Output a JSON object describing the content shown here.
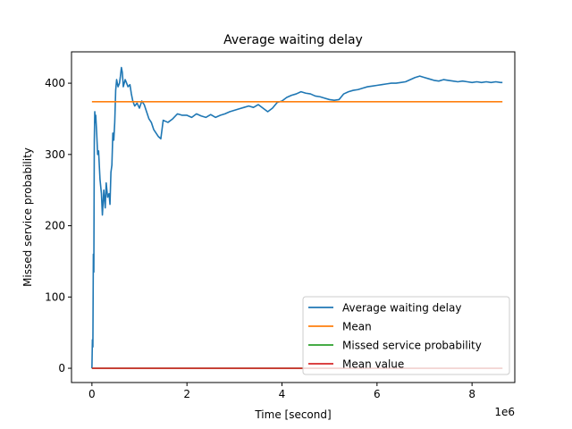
{
  "chart_data": {
    "type": "line",
    "title": "Average waiting delay",
    "xlabel": "Time [second]",
    "ylabel": "Missed service probability",
    "x_offset_label": "1e6",
    "xlim": [
      -0.43,
      8.9
    ],
    "ylim": [
      -20,
      444
    ],
    "x_ticks": [
      0,
      2,
      4,
      6,
      8
    ],
    "y_ticks": [
      0,
      100,
      200,
      300,
      400
    ],
    "x_tick_labels": [
      "0",
      "2",
      "4",
      "6",
      "8"
    ],
    "y_tick_labels": [
      "0",
      "100",
      "200",
      "300",
      "400"
    ],
    "grid": false,
    "legend_position": "lower right",
    "series": [
      {
        "name": "Average waiting delay",
        "color": "#1f77b4",
        "points": [
          [
            0,
            0
          ],
          [
            0.01,
            40
          ],
          [
            0.02,
            30
          ],
          [
            0.03,
            160
          ],
          [
            0.04,
            135
          ],
          [
            0.05,
            320
          ],
          [
            0.06,
            360
          ],
          [
            0.07,
            345
          ],
          [
            0.08,
            355
          ],
          [
            0.1,
            330
          ],
          [
            0.12,
            300
          ],
          [
            0.14,
            305
          ],
          [
            0.17,
            265
          ],
          [
            0.2,
            245
          ],
          [
            0.22,
            215
          ],
          [
            0.25,
            250
          ],
          [
            0.28,
            225
          ],
          [
            0.3,
            260
          ],
          [
            0.33,
            240
          ],
          [
            0.36,
            245
          ],
          [
            0.38,
            230
          ],
          [
            0.4,
            275
          ],
          [
            0.42,
            285
          ],
          [
            0.44,
            330
          ],
          [
            0.46,
            320
          ],
          [
            0.48,
            345
          ],
          [
            0.5,
            390
          ],
          [
            0.52,
            405
          ],
          [
            0.55,
            395
          ],
          [
            0.58,
            400
          ],
          [
            0.6,
            410
          ],
          [
            0.62,
            422
          ],
          [
            0.64,
            415
          ],
          [
            0.66,
            395
          ],
          [
            0.7,
            405
          ],
          [
            0.73,
            400
          ],
          [
            0.76,
            395
          ],
          [
            0.8,
            398
          ],
          [
            0.83,
            385
          ],
          [
            0.86,
            375
          ],
          [
            0.9,
            368
          ],
          [
            0.95,
            372
          ],
          [
            1.0,
            365
          ],
          [
            1.05,
            375
          ],
          [
            1.1,
            370
          ],
          [
            1.15,
            360
          ],
          [
            1.2,
            350
          ],
          [
            1.25,
            345
          ],
          [
            1.3,
            335
          ],
          [
            1.35,
            330
          ],
          [
            1.4,
            325
          ],
          [
            1.45,
            322
          ],
          [
            1.5,
            348
          ],
          [
            1.6,
            345
          ],
          [
            1.7,
            350
          ],
          [
            1.8,
            357
          ],
          [
            1.9,
            355
          ],
          [
            2.0,
            355
          ],
          [
            2.1,
            352
          ],
          [
            2.2,
            357
          ],
          [
            2.3,
            354
          ],
          [
            2.4,
            352
          ],
          [
            2.5,
            356
          ],
          [
            2.6,
            352
          ],
          [
            2.7,
            355
          ],
          [
            2.8,
            357
          ],
          [
            2.9,
            360
          ],
          [
            3.0,
            362
          ],
          [
            3.1,
            364
          ],
          [
            3.2,
            366
          ],
          [
            3.3,
            368
          ],
          [
            3.4,
            366
          ],
          [
            3.5,
            370
          ],
          [
            3.6,
            365
          ],
          [
            3.7,
            360
          ],
          [
            3.8,
            365
          ],
          [
            3.9,
            373
          ],
          [
            4.0,
            375
          ],
          [
            4.1,
            380
          ],
          [
            4.2,
            383
          ],
          [
            4.3,
            385
          ],
          [
            4.4,
            388
          ],
          [
            4.5,
            386
          ],
          [
            4.6,
            385
          ],
          [
            4.7,
            382
          ],
          [
            4.8,
            381
          ],
          [
            4.9,
            379
          ],
          [
            5.0,
            377
          ],
          [
            5.1,
            376
          ],
          [
            5.2,
            377
          ],
          [
            5.3,
            385
          ],
          [
            5.4,
            388
          ],
          [
            5.5,
            390
          ],
          [
            5.6,
            391
          ],
          [
            5.7,
            393
          ],
          [
            5.8,
            395
          ],
          [
            5.9,
            396
          ],
          [
            6.0,
            397
          ],
          [
            6.1,
            398
          ],
          [
            6.2,
            399
          ],
          [
            6.3,
            400
          ],
          [
            6.4,
            400
          ],
          [
            6.5,
            401
          ],
          [
            6.6,
            402
          ],
          [
            6.7,
            405
          ],
          [
            6.8,
            408
          ],
          [
            6.9,
            410
          ],
          [
            7.0,
            408
          ],
          [
            7.1,
            406
          ],
          [
            7.2,
            404
          ],
          [
            7.3,
            403
          ],
          [
            7.4,
            405
          ],
          [
            7.5,
            404
          ],
          [
            7.6,
            403
          ],
          [
            7.7,
            402
          ],
          [
            7.8,
            403
          ],
          [
            7.9,
            402
          ],
          [
            8.0,
            401
          ],
          [
            8.1,
            402
          ],
          [
            8.2,
            401
          ],
          [
            8.3,
            402
          ],
          [
            8.4,
            401
          ],
          [
            8.5,
            402
          ],
          [
            8.6,
            401
          ],
          [
            8.64,
            401
          ]
        ]
      },
      {
        "name": "Mean",
        "color": "#ff7f0e",
        "points": [
          [
            0,
            374
          ],
          [
            8.64,
            374
          ]
        ]
      },
      {
        "name": "Missed service probability",
        "color": "#2ca02c",
        "points": [
          [
            0,
            0
          ],
          [
            8.64,
            0
          ]
        ]
      },
      {
        "name": "Mean value",
        "color": "#d62728",
        "points": [
          [
            0,
            0
          ],
          [
            8.64,
            0
          ]
        ]
      }
    ]
  }
}
